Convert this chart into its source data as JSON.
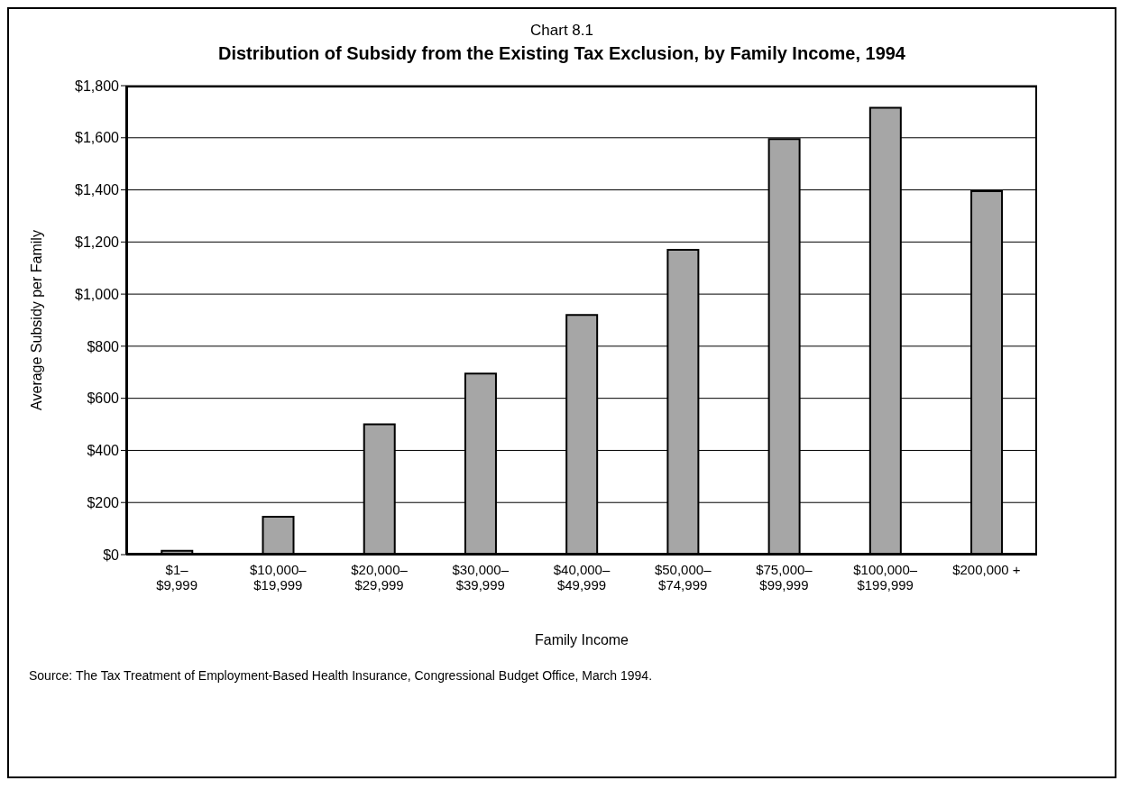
{
  "chart_data": {
    "type": "bar",
    "subtitle": "Chart 8.1",
    "title": "Distribution of Subsidy from the Existing Tax Exclusion, by Family Income, 1994",
    "xlabel": "Family Income",
    "ylabel": "Average Subsidy per Family",
    "categories": [
      "$1–\n$9,999",
      "$10,000–\n$19,999",
      "$20,000–\n$29,999",
      "$30,000–\n$39,999",
      "$40,000–\n$49,999",
      "$50,000–\n$74,999",
      "$75,000–\n$99,999",
      "$100,000–\n$199,999",
      "$200,000 +"
    ],
    "values": [
      15,
      145,
      500,
      695,
      920,
      1170,
      1595,
      1715,
      1395
    ],
    "color": "#a6a6a6",
    "ylim": [
      0,
      1800
    ],
    "yticks": [
      {
        "value": 0,
        "label": "$0"
      },
      {
        "value": 200,
        "label": "$200"
      },
      {
        "value": 400,
        "label": "$400"
      },
      {
        "value": 600,
        "label": "$600"
      },
      {
        "value": 800,
        "label": "$800"
      },
      {
        "value": 1000,
        "label": "$1,000"
      },
      {
        "value": 1200,
        "label": "$1,200"
      },
      {
        "value": 1400,
        "label": "$1,400"
      },
      {
        "value": 1600,
        "label": "$1,600"
      },
      {
        "value": 1800,
        "label": "$1,800"
      }
    ],
    "grid": "y",
    "annotations": [
      "Source: The Tax Treatment of Employment-Based Health Insurance, Congressional Budget Office, March 1994."
    ]
  }
}
